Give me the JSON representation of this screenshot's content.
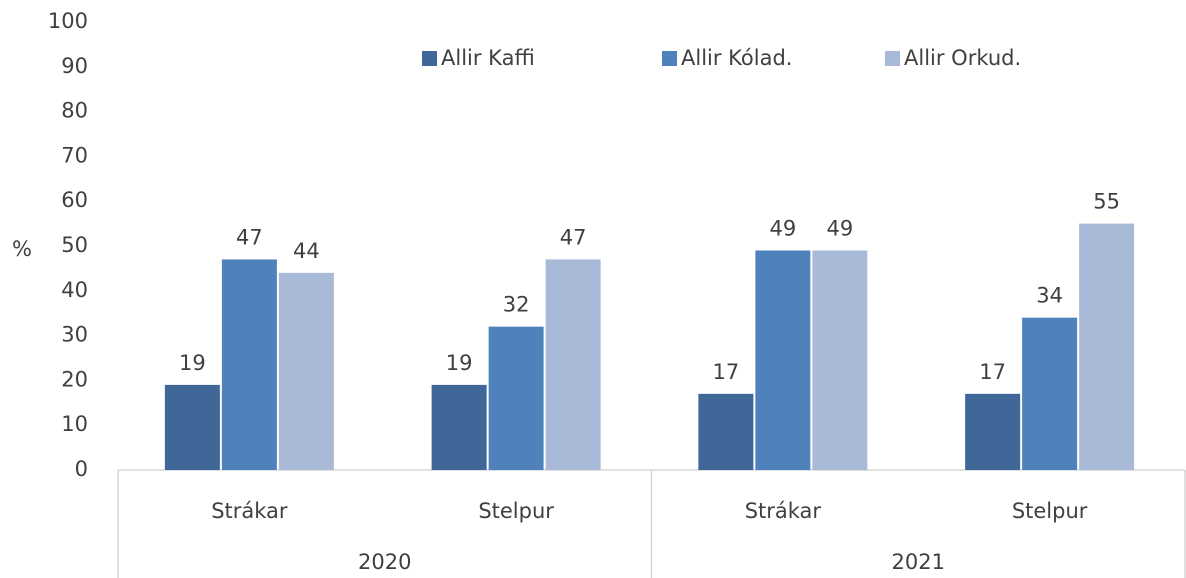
{
  "chart_data": {
    "type": "bar",
    "y_label": "%",
    "categories": [
      "Strákar",
      "Stelpur",
      "Strákar",
      "Stelpur"
    ],
    "groups": [
      "2020",
      "2021"
    ],
    "series": [
      {
        "name": "Allir Kaffi",
        "color": "#3f6899",
        "values": [
          19,
          19,
          17,
          17
        ]
      },
      {
        "name": "Allir Kólad.",
        "color": "#4f81bd",
        "values": [
          47,
          32,
          49,
          34
        ]
      },
      {
        "name": "Allir Orkud.",
        "color": "#a9b9d8",
        "values": [
          44,
          47,
          49,
          55
        ]
      }
    ],
    "ylim": [
      0,
      100
    ],
    "yticks": [
      0,
      10,
      20,
      30,
      40,
      50,
      60,
      70,
      80,
      90,
      100
    ],
    "grid": false,
    "legend": "top"
  }
}
